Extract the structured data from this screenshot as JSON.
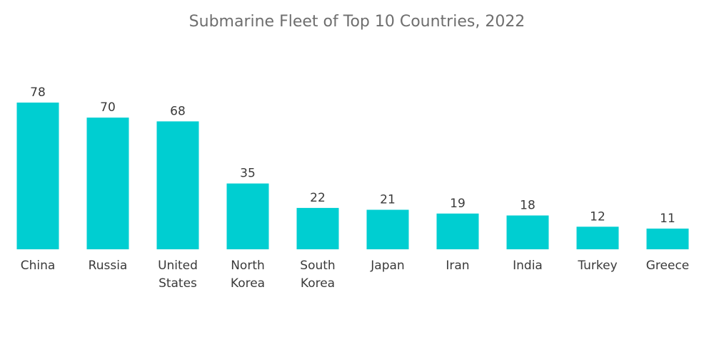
{
  "chart_data": {
    "type": "bar",
    "title": "Submarine Fleet of Top 10 Countries, 2022",
    "xlabel": "",
    "ylabel": "",
    "categories": [
      "China",
      "Russia",
      "United States",
      "North Korea",
      "South Korea",
      "Japan",
      "Iran",
      "India",
      "Turkey",
      "Greece"
    ],
    "category_lines": [
      [
        "China"
      ],
      [
        "Russia"
      ],
      [
        "United",
        "States"
      ],
      [
        "North",
        "Korea"
      ],
      [
        "South",
        "Korea"
      ],
      [
        "Japan"
      ],
      [
        "Iran"
      ],
      [
        "India"
      ],
      [
        "Turkey"
      ],
      [
        "Greece"
      ]
    ],
    "values": [
      78,
      70,
      68,
      35,
      22,
      21,
      19,
      18,
      12,
      11
    ],
    "ylim": [
      0,
      78
    ],
    "grid": false,
    "legend": "none",
    "bar_color": "#00CED1"
  }
}
